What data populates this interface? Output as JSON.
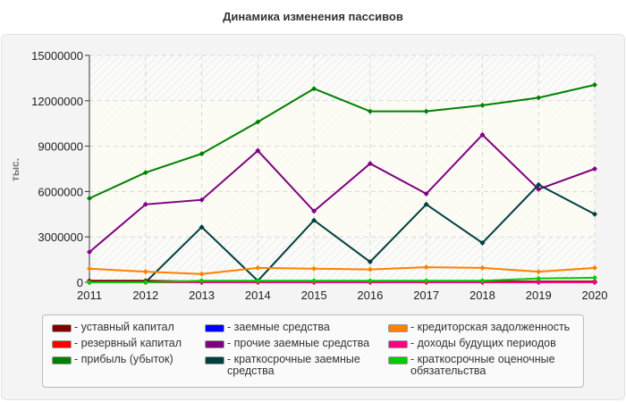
{
  "chart_data": {
    "type": "line",
    "title": "Динамика изменения пассивов",
    "ylabel": "тыс.",
    "xlabel": "",
    "x": [
      2011,
      2012,
      2013,
      2014,
      2015,
      2016,
      2017,
      2018,
      2019,
      2020
    ],
    "ylim": [
      0,
      15000000
    ],
    "yticks": [
      "0",
      "3000000",
      "6000000",
      "9000000",
      "12000000",
      "15000000"
    ],
    "grid": true,
    "legend_position": "bottom",
    "series": [
      {
        "name": "- уставный капитал",
        "color": "#800000",
        "values": [
          100000,
          100000,
          50000,
          50000,
          50000,
          50000,
          50000,
          50000,
          50000,
          50000
        ]
      },
      {
        "name": "- резервный капитал",
        "color": "#ff0000",
        "values": [
          0,
          0,
          0,
          0,
          0,
          0,
          0,
          0,
          0,
          0
        ]
      },
      {
        "name": "- прибыль (убыток)",
        "color": "#008000",
        "values": [
          5550000,
          7250000,
          8500000,
          10600000,
          12800000,
          11300000,
          11300000,
          11700000,
          12200000,
          13050000
        ]
      },
      {
        "name": "- заемные средства",
        "color": "#0000ff",
        "values": [
          0,
          0,
          0,
          0,
          0,
          0,
          0,
          0,
          0,
          0
        ]
      },
      {
        "name": "- прочие заемные средства",
        "color": "#800080",
        "values": [
          2000000,
          5150000,
          5450000,
          8700000,
          4700000,
          7850000,
          5850000,
          9750000,
          6150000,
          7500000
        ]
      },
      {
        "name": "- краткосрочные заемные средства",
        "color": "#004040",
        "values": [
          0,
          0,
          3650000,
          100000,
          4100000,
          1350000,
          5150000,
          2600000,
          6450000,
          4500000
        ]
      },
      {
        "name": "- кредиторская задолженность",
        "color": "#ff8000",
        "values": [
          900000,
          700000,
          550000,
          950000,
          900000,
          850000,
          1000000,
          950000,
          700000,
          950000
        ]
      },
      {
        "name": "- доходы будущих периодов",
        "color": "#ff0080",
        "values": [
          0,
          0,
          0,
          0,
          0,
          0,
          0,
          0,
          0,
          0
        ]
      },
      {
        "name": "- краткосрочные оценочные обязательства",
        "color": "#00cc00",
        "values": [
          0,
          0,
          100000,
          100000,
          100000,
          100000,
          100000,
          100000,
          250000,
          300000
        ]
      }
    ]
  }
}
